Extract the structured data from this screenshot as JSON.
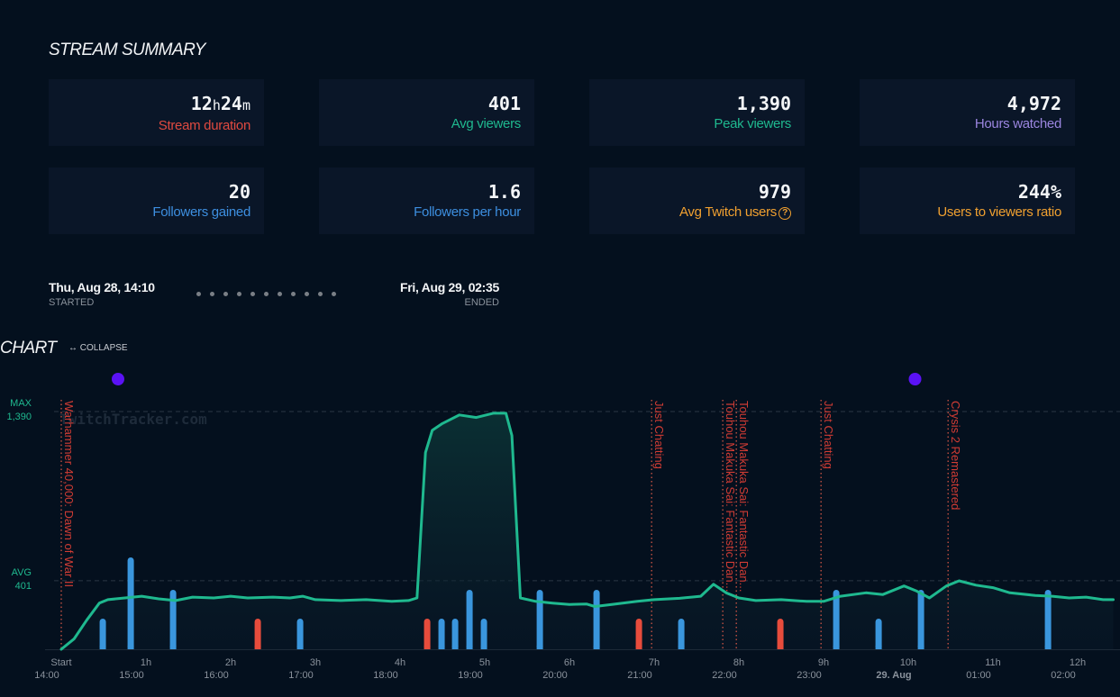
{
  "summary": {
    "title": "STREAM SUMMARY",
    "cards": [
      {
        "value": "12",
        "unit1": "h",
        "value2": "24",
        "unit2": "m",
        "label": "Stream duration",
        "color": "#e04a40"
      },
      {
        "value": "401",
        "label": "Avg viewers",
        "color": "#1fb98f"
      },
      {
        "value": "1,390",
        "label": "Peak viewers",
        "color": "#1fb98f"
      },
      {
        "value": "4,972",
        "label": "Hours watched",
        "color": "#9b86e0"
      },
      {
        "value": "20",
        "label": "Followers gained",
        "color": "#3d8fe0"
      },
      {
        "value": "1.6",
        "label": "Followers per hour",
        "color": "#3d8fe0"
      },
      {
        "value": "979",
        "label": "Avg Twitch users",
        "color": "#f0a030",
        "help_icon": "?"
      },
      {
        "value": "244%",
        "label": "Users to viewers ratio",
        "color": "#f0a030"
      }
    ]
  },
  "timeline": {
    "start": {
      "time": "Thu, Aug 28, 14:10",
      "label": "STARTED"
    },
    "end": {
      "time": "Fri, Aug 29, 02:35",
      "label": "ENDED"
    }
  },
  "chart_section": {
    "title": "CHART",
    "collapse_label": "↔ COLLAPSE"
  },
  "chart_data": {
    "type": "line",
    "watermark": "TwitchTracker.com",
    "y_markers": [
      {
        "name": "MAX",
        "value": 1390,
        "label": "1,390"
      },
      {
        "name": "AVG",
        "value": 401,
        "label": "401"
      }
    ],
    "ylim": [
      0,
      1390
    ],
    "xlim_hours": [
      0,
      12.42
    ],
    "x_ticks": [
      {
        "h": 0,
        "label": "Start",
        "clock": "14:00"
      },
      {
        "h": 1,
        "label": "1h",
        "clock": "15:00"
      },
      {
        "h": 2,
        "label": "2h",
        "clock": "16:00"
      },
      {
        "h": 3,
        "label": "3h",
        "clock": "17:00"
      },
      {
        "h": 4,
        "label": "4h",
        "clock": "18:00"
      },
      {
        "h": 5,
        "label": "5h",
        "clock": "19:00"
      },
      {
        "h": 6,
        "label": "6h",
        "clock": "20:00"
      },
      {
        "h": 7,
        "label": "7h",
        "clock": "21:00"
      },
      {
        "h": 8,
        "label": "8h",
        "clock": "22:00"
      },
      {
        "h": 9,
        "label": "9h",
        "clock": "23:00"
      },
      {
        "h": 10,
        "label": "10h",
        "clock": "29. Aug"
      },
      {
        "h": 11,
        "label": "11h",
        "clock": "01:00"
      },
      {
        "h": 12,
        "label": "12h",
        "clock": "02:00"
      }
    ],
    "viewers_series": {
      "name": "Viewers",
      "color": "#1fb98f",
      "points": [
        [
          0.0,
          0
        ],
        [
          0.15,
          60
        ],
        [
          0.3,
          170
        ],
        [
          0.45,
          270
        ],
        [
          0.55,
          290
        ],
        [
          0.75,
          300
        ],
        [
          0.95,
          310
        ],
        [
          1.15,
          295
        ],
        [
          1.35,
          285
        ],
        [
          1.55,
          305
        ],
        [
          1.8,
          300
        ],
        [
          2.0,
          310
        ],
        [
          2.2,
          300
        ],
        [
          2.5,
          305
        ],
        [
          2.7,
          300
        ],
        [
          2.85,
          310
        ],
        [
          3.0,
          290
        ],
        [
          3.3,
          285
        ],
        [
          3.6,
          290
        ],
        [
          3.9,
          280
        ],
        [
          4.1,
          285
        ],
        [
          4.2,
          300
        ],
        [
          4.3,
          1150
        ],
        [
          4.38,
          1280
        ],
        [
          4.5,
          1320
        ],
        [
          4.7,
          1370
        ],
        [
          4.9,
          1355
        ],
        [
          5.1,
          1380
        ],
        [
          5.25,
          1380
        ],
        [
          5.32,
          1250
        ],
        [
          5.42,
          300
        ],
        [
          5.6,
          280
        ],
        [
          5.8,
          270
        ],
        [
          6.0,
          262
        ],
        [
          6.2,
          265
        ],
        [
          6.3,
          250
        ],
        [
          6.5,
          262
        ],
        [
          6.8,
          280
        ],
        [
          7.0,
          290
        ],
        [
          7.3,
          298
        ],
        [
          7.55,
          310
        ],
        [
          7.7,
          380
        ],
        [
          7.85,
          330
        ],
        [
          8.0,
          300
        ],
        [
          8.2,
          285
        ],
        [
          8.5,
          290
        ],
        [
          8.8,
          280
        ],
        [
          9.0,
          280
        ],
        [
          9.2,
          310
        ],
        [
          9.5,
          330
        ],
        [
          9.7,
          320
        ],
        [
          9.95,
          370
        ],
        [
          10.1,
          340
        ],
        [
          10.25,
          300
        ],
        [
          10.45,
          370
        ],
        [
          10.6,
          400
        ],
        [
          10.8,
          375
        ],
        [
          11.0,
          360
        ],
        [
          11.2,
          330
        ],
        [
          11.5,
          315
        ],
        [
          11.7,
          310
        ],
        [
          11.9,
          300
        ],
        [
          12.1,
          305
        ],
        [
          12.3,
          290
        ],
        [
          12.42,
          290
        ]
      ]
    },
    "follower_events": {
      "colors": {
        "follow": "#3a96dd",
        "unfollow": "#e74c3c"
      },
      "events": [
        {
          "h": 0.49,
          "size": 1,
          "type": "follow"
        },
        {
          "h": 0.82,
          "size": 3,
          "type": "follow"
        },
        {
          "h": 1.32,
          "size": 2,
          "type": "follow"
        },
        {
          "h": 2.32,
          "size": 1,
          "type": "unfollow"
        },
        {
          "h": 2.82,
          "size": 1,
          "type": "follow"
        },
        {
          "h": 4.32,
          "size": 1,
          "type": "unfollow"
        },
        {
          "h": 4.49,
          "size": 1,
          "type": "follow"
        },
        {
          "h": 4.65,
          "size": 1,
          "type": "follow"
        },
        {
          "h": 4.82,
          "size": 2,
          "type": "follow"
        },
        {
          "h": 4.99,
          "size": 1,
          "type": "follow"
        },
        {
          "h": 5.65,
          "size": 2,
          "type": "follow"
        },
        {
          "h": 6.32,
          "size": 2,
          "type": "follow"
        },
        {
          "h": 6.82,
          "size": 1,
          "type": "unfollow"
        },
        {
          "h": 7.32,
          "size": 1,
          "type": "follow"
        },
        {
          "h": 8.49,
          "size": 1,
          "type": "unfollow"
        },
        {
          "h": 9.15,
          "size": 2,
          "type": "follow"
        },
        {
          "h": 9.65,
          "size": 1,
          "type": "follow"
        },
        {
          "h": 10.15,
          "size": 2,
          "type": "follow"
        },
        {
          "h": 11.65,
          "size": 2,
          "type": "follow"
        }
      ]
    },
    "game_changes": [
      {
        "h": 0.0,
        "label": "Warhammer 40,000: Dawn of War II"
      },
      {
        "h": 6.97,
        "label": "Just Chatting"
      },
      {
        "h": 7.81,
        "label": "Touhou Makuka Sai: Fantastic Dan..."
      },
      {
        "h": 7.97,
        "label": "Touhou Makuka Sai: Fantastic Dan..."
      },
      {
        "h": 8.97,
        "label": "Just Chatting"
      },
      {
        "h": 10.47,
        "label": "Crysis 2 Remastered"
      }
    ],
    "event_dots": [
      {
        "h": 0.67,
        "color": "#5b12f5"
      },
      {
        "h": 10.08,
        "color": "#5b12f5"
      }
    ]
  }
}
